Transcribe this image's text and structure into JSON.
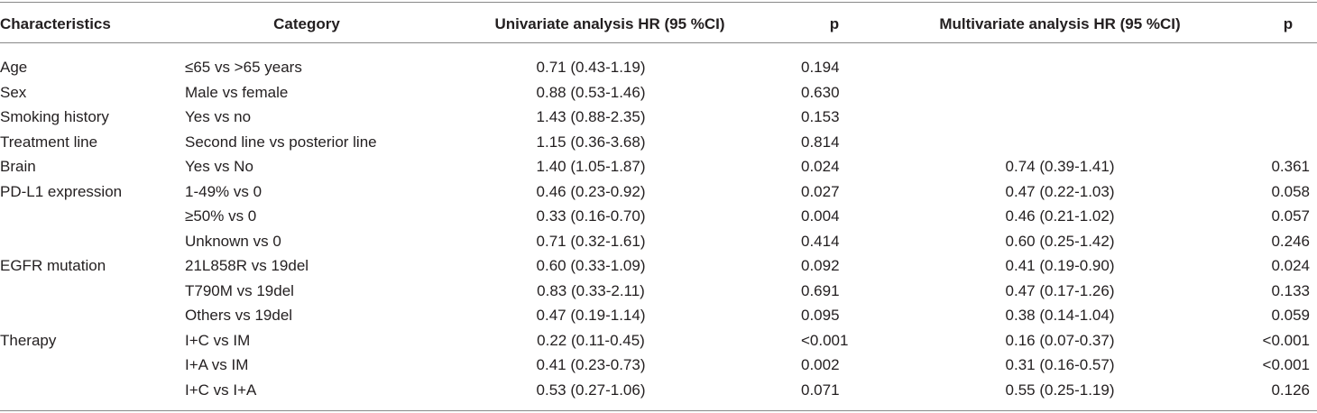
{
  "table": {
    "header": [
      "Characteristics",
      "Category",
      "Univariate analysis HR (95 %CI)",
      "p",
      "Multivariate analysis HR (95 %CI)",
      "p"
    ],
    "rows": [
      [
        "Age",
        "≤65 vs >65 years",
        "0.71 (0.43-1.19)",
        "0.194",
        null,
        null
      ],
      [
        "Sex",
        "Male vs female",
        "0.88 (0.53-1.46)",
        "0.630",
        null,
        null
      ],
      [
        "Smoking history",
        "Yes vs no",
        "1.43 (0.88-2.35)",
        "0.153",
        null,
        null
      ],
      [
        "Treatment line",
        "Second line vs posterior line",
        "1.15 (0.36-3.68)",
        "0.814",
        null,
        null
      ],
      [
        "Brain",
        "Yes vs No",
        "1.40 (1.05-1.87)",
        "0.024",
        "0.74 (0.39-1.41)",
        "0.361"
      ],
      [
        "PD-L1 expression",
        "1-49% vs 0",
        "0.46 (0.23-0.92)",
        "0.027",
        "0.47 (0.22-1.03)",
        "0.058"
      ],
      [
        null,
        "≥50% vs 0",
        "0.33 (0.16-0.70)",
        "0.004",
        "0.46 (0.21-1.02)",
        "0.057"
      ],
      [
        null,
        "Unknown vs 0",
        "0.71 (0.32-1.61)",
        "0.414",
        "0.60 (0.25-1.42)",
        "0.246"
      ],
      [
        "EGFR mutation",
        "21L858R vs 19del",
        "0.60 (0.33-1.09)",
        "0.092",
        "0.41 (0.19-0.90)",
        "0.024"
      ],
      [
        null,
        "T790M vs 19del",
        "0.83 (0.33-2.11)",
        "0.691",
        "0.47 (0.17-1.26)",
        "0.133"
      ],
      [
        null,
        "Others vs 19del",
        "0.47 (0.19-1.14)",
        "0.095",
        "0.38 (0.14-1.04)",
        "0.059"
      ],
      [
        "Therapy",
        "I+C vs IM",
        "0.22 (0.11-0.45)",
        "<0.001",
        "0.16 (0.07-0.37)",
        "<0.001"
      ],
      [
        null,
        "I+A vs IM",
        "0.41 (0.23-0.73)",
        "0.002",
        "0.31 (0.16-0.57)",
        "<0.001"
      ],
      [
        null,
        "I+C vs I+A",
        "0.53 (0.27-1.06)",
        "0.071",
        "0.55 (0.25-1.19)",
        "0.126"
      ]
    ]
  }
}
